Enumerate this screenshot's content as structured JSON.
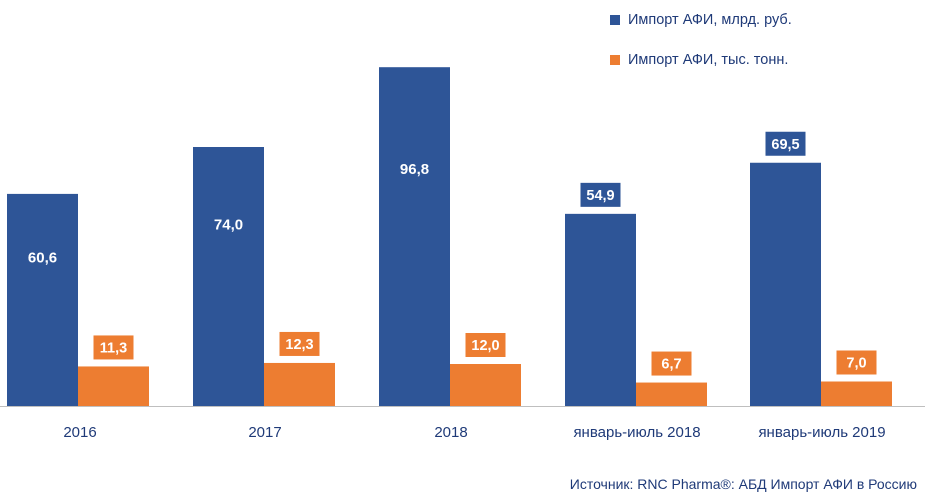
{
  "chart_data": {
    "type": "bar",
    "categories": [
      "2016",
      "2017",
      "2018",
      "январь-июль 2018",
      "январь-июль 2019"
    ],
    "series": [
      {
        "name": "Импорт АФИ, млрд. руб.",
        "values": [
          60.6,
          74.0,
          96.8,
          54.9,
          69.5
        ],
        "labels": [
          "60,6",
          "74,0",
          "96,8",
          "54,9",
          "69,5"
        ],
        "color": "#2e5597"
      },
      {
        "name": "Импорт АФИ, тыс. тонн.",
        "values": [
          11.3,
          12.3,
          12.0,
          6.7,
          7.0
        ],
        "labels": [
          "11,3",
          "12,3",
          "12,0",
          "6,7",
          "7,0"
        ],
        "color": "#ed7d31"
      }
    ],
    "ylim": [
      0,
      100
    ],
    "grid": false,
    "legend_position": "top-right",
    "data_label_style": [
      "inside",
      "inside",
      "inside",
      "above-boxed",
      "above-boxed"
    ]
  },
  "colors": {
    "axis": "#bfbfbf",
    "text": "#1f3a78",
    "label_text": "#ffffff"
  },
  "source_text": "Источник: RNC Pharma®: АБД Импорт АФИ в Россию"
}
